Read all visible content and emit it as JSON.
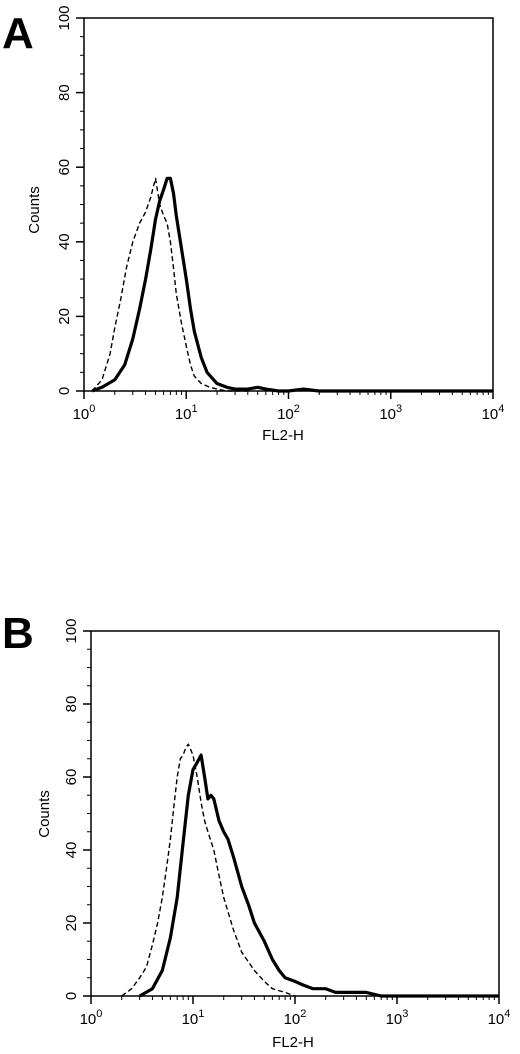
{
  "chart_data": [
    {
      "type": "line",
      "panel": "A",
      "xlabel": "FL2-H",
      "ylabel": "Counts",
      "xscale": "log",
      "xlim": [
        1,
        10000
      ],
      "ylim": [
        0,
        100
      ],
      "xticks": [
        {
          "base": "10",
          "exp": "0",
          "value": 1
        },
        {
          "base": "10",
          "exp": "1",
          "value": 10
        },
        {
          "base": "10",
          "exp": "2",
          "value": 100
        },
        {
          "base": "10",
          "exp": "3",
          "value": 1000
        },
        {
          "base": "10",
          "exp": "4",
          "value": 10000
        }
      ],
      "yticks": [
        "0",
        "20",
        "40",
        "60",
        "80",
        "100"
      ],
      "grid": false,
      "series": [
        {
          "style": "solid",
          "color": "#000000",
          "x": [
            1.2,
            1.5,
            2.0,
            2.5,
            3.0,
            3.5,
            4.0,
            4.5,
            5.0,
            5.5,
            6.0,
            6.5,
            7.0,
            7.5,
            8.0,
            9.0,
            10.0,
            11.0,
            12.0,
            14.0,
            16.0,
            20.0,
            25.0,
            30.0,
            40.0,
            50.0,
            60.0,
            80.0,
            100.0,
            140.0,
            200.0,
            500.0,
            10000.0
          ],
          "y": [
            0,
            1,
            3,
            7,
            14,
            22,
            30,
            38,
            46,
            51,
            54,
            57,
            57,
            53,
            47,
            38,
            30,
            22,
            16,
            9,
            5,
            2,
            1,
            0.5,
            0.5,
            1,
            0.5,
            0,
            0,
            0.5,
            0,
            0,
            0
          ]
        },
        {
          "style": "dashed",
          "color": "#000000",
          "x": [
            1.2,
            1.5,
            1.8,
            2.0,
            2.3,
            2.6,
            3.0,
            3.5,
            4.0,
            4.5,
            5.0,
            5.5,
            6.0,
            6.5,
            7.0,
            7.5,
            8.0,
            9.0,
            10.0,
            11.0,
            12.0,
            14.0,
            17.0,
            20.0,
            25.0,
            30.0,
            40.0
          ],
          "y": [
            0,
            3,
            10,
            17,
            25,
            33,
            40,
            45,
            48,
            52,
            57,
            50,
            47,
            45,
            40,
            33,
            26,
            18,
            12,
            7,
            4,
            2,
            1,
            0.5,
            0,
            0,
            0
          ]
        }
      ]
    },
    {
      "type": "line",
      "panel": "B",
      "xlabel": "FL2-H",
      "ylabel": "Counts",
      "xscale": "log",
      "xlim": [
        1,
        10000
      ],
      "ylim": [
        0,
        100
      ],
      "xticks": [
        {
          "base": "10",
          "exp": "0",
          "value": 1
        },
        {
          "base": "10",
          "exp": "1",
          "value": 10
        },
        {
          "base": "10",
          "exp": "2",
          "value": 100
        },
        {
          "base": "10",
          "exp": "3",
          "value": 1000
        },
        {
          "base": "10",
          "exp": "4",
          "value": 10000
        }
      ],
      "yticks": [
        "0",
        "20",
        "40",
        "60",
        "80",
        "100"
      ],
      "grid": false,
      "series": [
        {
          "style": "solid",
          "color": "#000000",
          "x": [
            3.0,
            4.0,
            5.0,
            6.0,
            7.0,
            8.0,
            9.0,
            10.0,
            11.0,
            12.0,
            13.0,
            14.0,
            15.0,
            16.0,
            18.0,
            20.0,
            22.0,
            25.0,
            30.0,
            35.0,
            40.0,
            50.0,
            60.0,
            70.0,
            80.0,
            100.0,
            120.0,
            150.0,
            200.0,
            250.0,
            300.0,
            400.0,
            500.0,
            700.0,
            10000.0
          ],
          "y": [
            0,
            2,
            7,
            16,
            27,
            42,
            55,
            62,
            64,
            66,
            60,
            54,
            55,
            54,
            48,
            45,
            43,
            38,
            30,
            25,
            20,
            15,
            10,
            7,
            5,
            4,
            3,
            2,
            2,
            1,
            1,
            1,
            1,
            0,
            0
          ]
        },
        {
          "style": "dashed",
          "color": "#000000",
          "x": [
            2.0,
            2.5,
            3.0,
            3.5,
            4.0,
            4.5,
            5.0,
            5.5,
            6.0,
            6.5,
            7.0,
            7.5,
            8.0,
            8.5,
            9.0,
            10.0,
            11.0,
            12.0,
            13.0,
            14.0,
            16.0,
            18.0,
            20.0,
            25.0,
            30.0,
            40.0,
            50.0,
            60.0,
            80.0,
            100.0
          ],
          "y": [
            0,
            2,
            5,
            8,
            14,
            20,
            27,
            35,
            43,
            52,
            60,
            65,
            66,
            68,
            69,
            66,
            60,
            53,
            48,
            45,
            40,
            33,
            27,
            18,
            12,
            7,
            4,
            2,
            1,
            0
          ]
        }
      ]
    }
  ]
}
